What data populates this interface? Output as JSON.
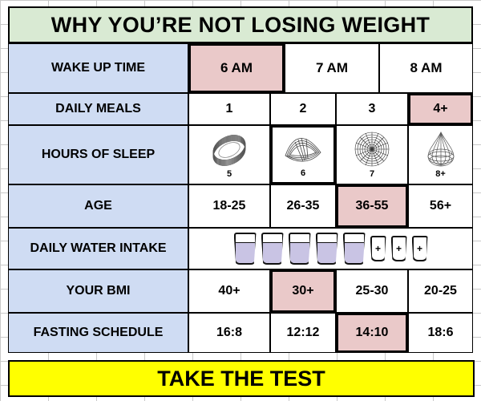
{
  "title": "WHY YOU’RE NOT LOSING WEIGHT",
  "rows": {
    "wake_up": {
      "label": "WAKE UP TIME",
      "options": [
        "6 AM",
        "7 AM",
        "8 AM"
      ],
      "selected": "6 AM"
    },
    "daily_meals": {
      "label": "DAILY MEALS",
      "options": [
        "1",
        "2",
        "3",
        "4+"
      ],
      "selected": "4+"
    },
    "sleep": {
      "label": "HOURS OF SLEEP",
      "options": [
        "5",
        "6",
        "7",
        "8+"
      ],
      "selected": "6",
      "icons": [
        "ring-coil-icon",
        "mobius-strip-icon",
        "spiral-disc-icon",
        "droplet-wire-icon"
      ]
    },
    "age": {
      "label": "AGE",
      "options": [
        "18-25",
        "26-35",
        "36-55",
        "56+"
      ],
      "selected": "36-55"
    },
    "water": {
      "label": "DAILY WATER INTAKE",
      "glasses": [
        "",
        "",
        "",
        "",
        "",
        "+",
        "+",
        "+"
      ],
      "filled_count": 5
    },
    "bmi": {
      "label": "YOUR BMI",
      "options": [
        "40+",
        "30+",
        "25-30",
        "20-25"
      ],
      "selected": "30+"
    },
    "fasting": {
      "label": "FASTING SCHEDULE",
      "options": [
        "16:8",
        "12:12",
        "14:10",
        "18:6"
      ],
      "selected": "14:10"
    }
  },
  "cta": "TAKE THE TEST",
  "colors": {
    "title_bg": "#d9ead3",
    "label_bg": "#cfdcf3",
    "selected_bg": "#eac9c9",
    "cta_bg": "#ffff00",
    "water": "#c9c4e4"
  }
}
